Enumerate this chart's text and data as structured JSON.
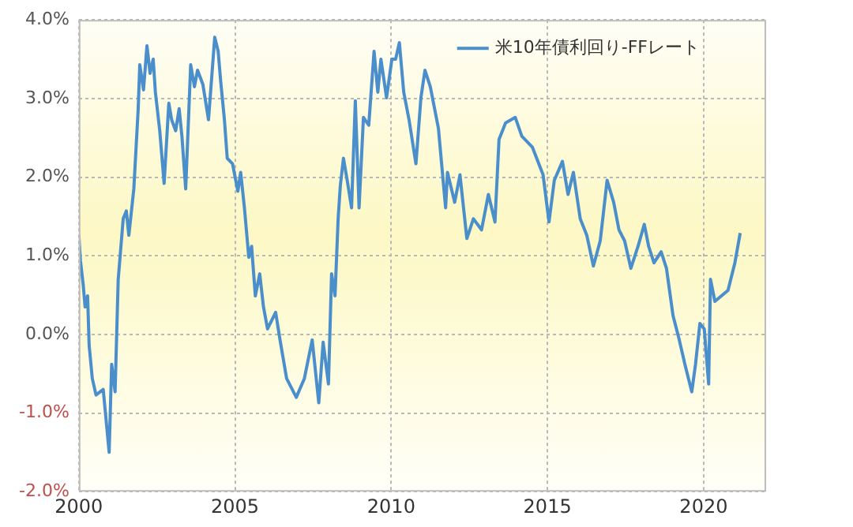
{
  "chart_data": {
    "type": "line",
    "legend": "top right",
    "grid": true,
    "marker": "none",
    "line_style": "solid",
    "xlim": [
      2000,
      2022
    ],
    "xticks": [
      2000,
      2005,
      2010,
      2015,
      2020
    ],
    "ylim": [
      -2,
      4
    ],
    "yticks": [
      {
        "value": -2,
        "label": "-2.0%"
      },
      {
        "value": -1,
        "label": "-1.0%"
      },
      {
        "value": 0,
        "label": "0.0%"
      },
      {
        "value": 1,
        "label": "1.0%"
      },
      {
        "value": 2,
        "label": "2.0%"
      },
      {
        "value": 3,
        "label": "3.0%"
      },
      {
        "value": 4,
        "label": "4.0%"
      }
    ],
    "series": [
      {
        "name": "米10年債利回り-FFレート",
        "color": "#4a8fcb",
        "x": [
          2000.0,
          2000.05,
          2000.14,
          2000.2,
          2000.28,
          2000.33,
          2000.43,
          2000.55,
          2000.78,
          2000.97,
          2001.05,
          2001.16,
          2001.26,
          2001.42,
          2001.52,
          2001.6,
          2001.76,
          2001.9,
          2001.95,
          2002.07,
          2002.18,
          2002.28,
          2002.38,
          2002.45,
          2002.59,
          2002.73,
          2002.88,
          2002.97,
          2003.1,
          2003.21,
          2003.3,
          2003.42,
          2003.58,
          2003.7,
          2003.8,
          2003.97,
          2004.15,
          2004.35,
          2004.46,
          2004.54,
          2004.66,
          2004.75,
          2004.92,
          2005.09,
          2005.18,
          2005.3,
          2005.44,
          2005.53,
          2005.65,
          2005.79,
          2005.91,
          2006.04,
          2006.3,
          2006.44,
          2006.65,
          2006.96,
          2007.22,
          2007.47,
          2007.68,
          2007.82,
          2007.99,
          2008.09,
          2008.2,
          2008.3,
          2008.37,
          2008.47,
          2008.59,
          2008.73,
          2008.85,
          2008.97,
          2009.11,
          2009.28,
          2009.45,
          2009.57,
          2009.67,
          2009.85,
          2010.02,
          2010.14,
          2010.26,
          2010.4,
          2010.57,
          2010.79,
          2010.95,
          2011.08,
          2011.25,
          2011.51,
          2011.74,
          2011.8,
          2012.03,
          2012.2,
          2012.42,
          2012.63,
          2012.89,
          2013.11,
          2013.32,
          2013.45,
          2013.66,
          2013.97,
          2014.18,
          2014.52,
          2014.86,
          2015.05,
          2015.22,
          2015.48,
          2015.66,
          2015.83,
          2016.05,
          2016.26,
          2016.47,
          2016.69,
          2016.91,
          2017.12,
          2017.29,
          2017.47,
          2017.67,
          2017.9,
          2018.1,
          2018.24,
          2018.41,
          2018.64,
          2018.81,
          2019.02,
          2019.22,
          2019.4,
          2019.62,
          2019.74,
          2019.88,
          2020.02,
          2020.16,
          2020.22,
          2020.36,
          2020.57,
          2020.78,
          2021.0,
          2021.17
        ],
        "values": [
          1.26,
          0.94,
          0.63,
          0.35,
          0.49,
          -0.14,
          -0.56,
          -0.77,
          -0.7,
          -1.5,
          -0.38,
          -0.73,
          0.7,
          1.47,
          1.57,
          1.26,
          1.85,
          2.87,
          3.43,
          3.11,
          3.67,
          3.32,
          3.5,
          3.08,
          2.59,
          1.92,
          2.94,
          2.73,
          2.59,
          2.87,
          2.52,
          1.85,
          3.43,
          3.15,
          3.36,
          3.18,
          2.73,
          3.78,
          3.6,
          3.22,
          2.73,
          2.24,
          2.17,
          1.82,
          2.06,
          1.61,
          0.98,
          1.12,
          0.49,
          0.77,
          0.35,
          0.07,
          0.28,
          -0.07,
          -0.56,
          -0.8,
          -0.56,
          -0.07,
          -0.87,
          -0.1,
          -0.63,
          0.77,
          0.49,
          1.47,
          1.89,
          2.24,
          1.96,
          1.61,
          2.97,
          1.61,
          2.76,
          2.66,
          3.6,
          3.08,
          3.5,
          3.01,
          3.5,
          3.5,
          3.71,
          3.08,
          2.73,
          2.17,
          3.01,
          3.36,
          3.15,
          2.62,
          1.61,
          2.06,
          1.68,
          2.03,
          1.22,
          1.47,
          1.33,
          1.78,
          1.43,
          2.48,
          2.69,
          2.76,
          2.52,
          2.38,
          2.03,
          1.43,
          1.96,
          2.2,
          1.78,
          2.06,
          1.47,
          1.26,
          0.87,
          1.19,
          1.96,
          1.68,
          1.33,
          1.19,
          0.84,
          1.12,
          1.4,
          1.12,
          0.91,
          1.05,
          0.84,
          0.24,
          -0.07,
          -0.38,
          -0.73,
          -0.38,
          0.14,
          0.07,
          -0.63,
          0.7,
          0.42,
          0.49,
          0.56,
          0.91,
          1.29
        ]
      }
    ]
  }
}
